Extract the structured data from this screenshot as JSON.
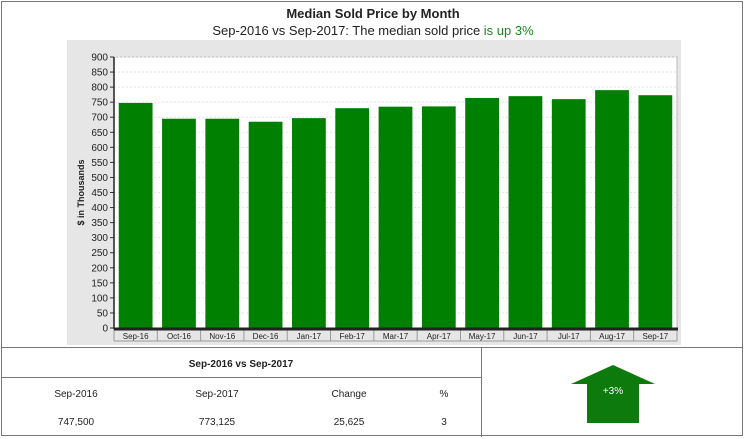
{
  "header": {
    "title": "Median Sold Price by Month",
    "subtitle_main": "Sep-2016 vs Sep-2017: The median sold price ",
    "subtitle_highlight": "is up 3%"
  },
  "colors": {
    "bar": "#008000",
    "highlight": "#1a8a1a",
    "plot_background": "#e6e6e6",
    "arrow": "#0c7a0c"
  },
  "chart_data": {
    "type": "bar",
    "title": "Median Sold Price by Month",
    "xlabel": "",
    "ylabel": "$ in Thousands",
    "ylim": [
      0,
      900
    ],
    "yticks": [
      0,
      50,
      100,
      150,
      200,
      250,
      300,
      350,
      400,
      450,
      500,
      550,
      600,
      650,
      700,
      750,
      800,
      850,
      900
    ],
    "grid": true,
    "categories": [
      "Sep-16",
      "Oct-16",
      "Nov-16",
      "Dec-16",
      "Jan-17",
      "Feb-17",
      "Mar-17",
      "Apr-17",
      "May-17",
      "Jun-17",
      "Jul-17",
      "Aug-17",
      "Sep-17"
    ],
    "values": [
      747.5,
      695,
      695,
      685,
      697,
      730,
      735,
      736,
      764,
      770,
      760,
      790,
      773.125
    ]
  },
  "stats": {
    "title": "Sep-2016 vs Sep-2017",
    "headers": [
      "Sep-2016",
      "Sep-2017",
      "Change",
      "%"
    ],
    "values": [
      "747,500",
      "773,125",
      "25,625",
      "3"
    ]
  },
  "indicator": {
    "label": "+3%",
    "direction": "up"
  }
}
